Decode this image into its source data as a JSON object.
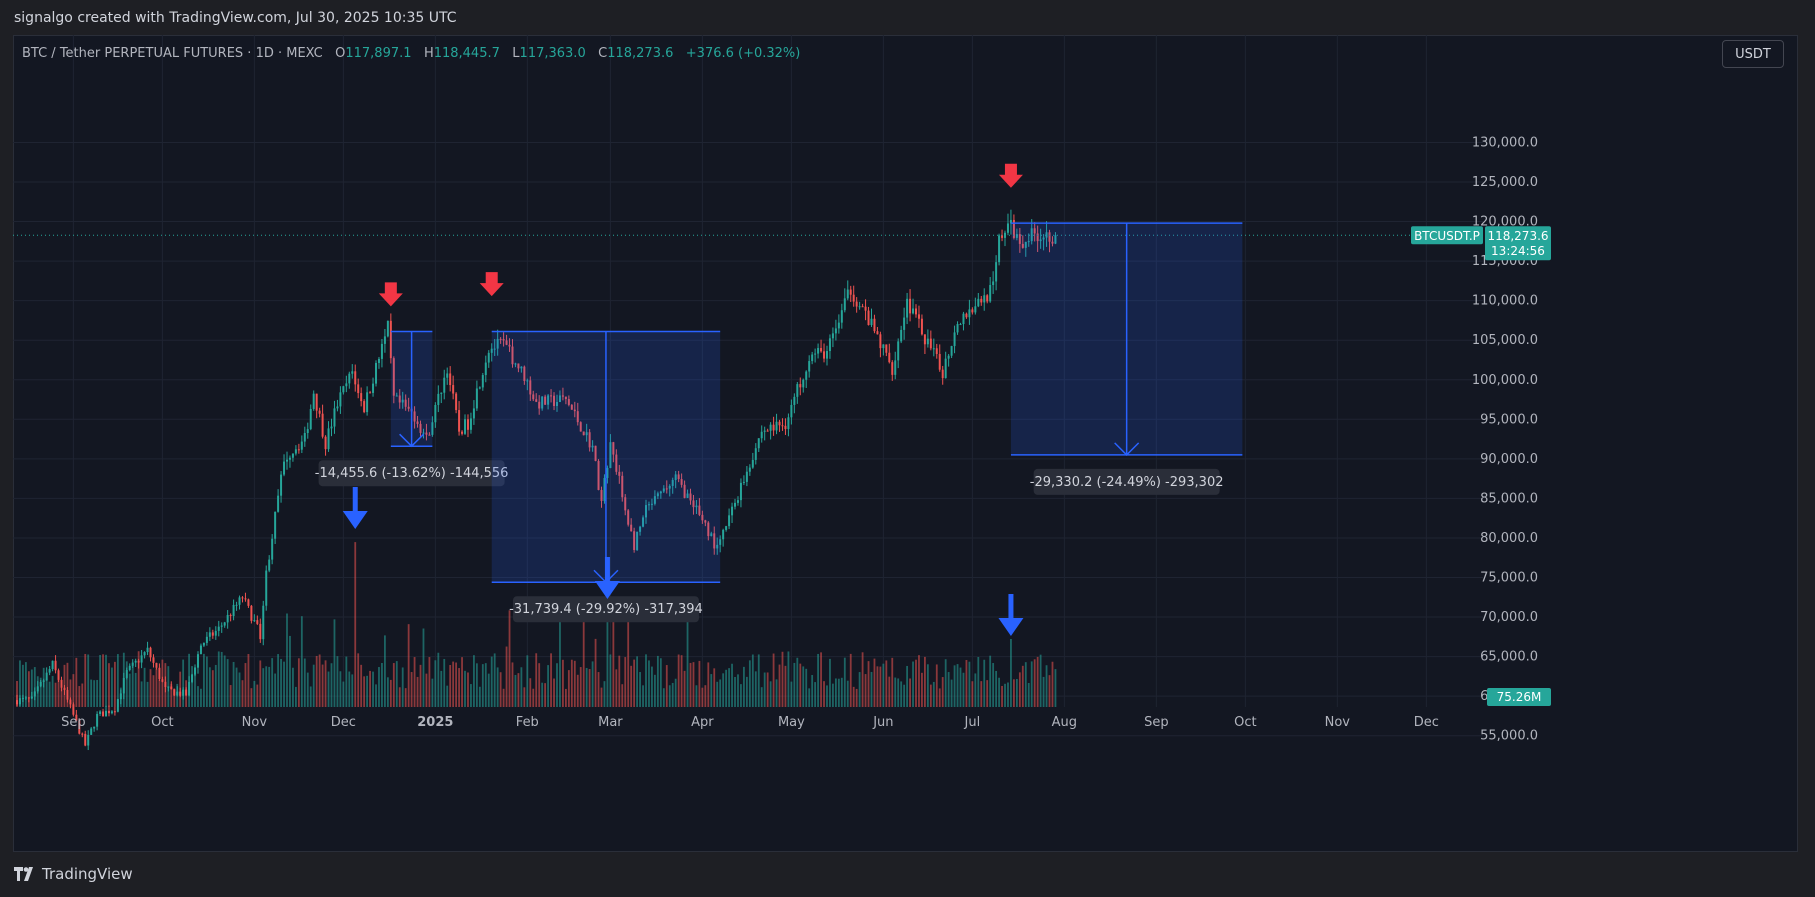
{
  "attribution": "signalgo created with TradingView.com, Jul 30, 2025 10:35 UTC",
  "header": {
    "symbol": "BTC / Tether PERPETUAL FUTURES · 1D · MEXC",
    "open_label": "O",
    "open": "117,897.1",
    "high_label": "H",
    "high": "118,445.7",
    "low_label": "L",
    "low": "117,363.0",
    "close_label": "C",
    "close": "118,273.6",
    "change": "+376.6 (+0.32%)"
  },
  "currency_button": "USDT",
  "footer": {
    "brand": "TradingView"
  },
  "colors": {
    "up": "#26a69a",
    "down": "#ef5350",
    "measure": "#2962ff",
    "marker_red": "#f23645",
    "marker_blue": "#2962ff",
    "background": "#131722"
  },
  "price_label": {
    "symbol": "BTCUSDT.P",
    "price": "118,273.6",
    "countdown": "13:24:56"
  },
  "volume_label": "75.26M",
  "measurements": [
    {
      "text": "-14,455.6 (-13.62%) -144,556",
      "from_date": "2024-12-17",
      "to_date": "2024-12-31",
      "top": 106100,
      "bottom": 91600
    },
    {
      "text": "-31,739.4 (-29.92%) -317,394",
      "from_date": "2025-01-20",
      "to_date": "2025-04-07",
      "top": 106100,
      "bottom": 74400
    },
    {
      "text": "-29,330.2 (-24.49%) -293,302",
      "from_date": "2025-07-14",
      "to_date": "2025-09-30",
      "top": 119800,
      "bottom": 90500
    }
  ],
  "chart_data": {
    "type": "candlestick",
    "title": "BTC / Tether PERPETUAL FUTURES · 1D · MEXC",
    "y_ticks": [
      "55,000.0",
      "60,000.0",
      "65,000.0",
      "70,000.0",
      "75,000.0",
      "80,000.0",
      "85,000.0",
      "90,000.0",
      "95,000.0",
      "100,000.0",
      "105,000.0",
      "110,000.0",
      "115,000.0",
      "120,000.0",
      "125,000.0",
      "130,000.0"
    ],
    "x_ticks": [
      "Sep",
      "Oct",
      "Nov",
      "Dec",
      "2025",
      "Feb",
      "Mar",
      "Apr",
      "May",
      "Jun",
      "Jul",
      "Aug",
      "Sep",
      "Oct",
      "Nov",
      "Dec"
    ],
    "ylim": [
      52000,
      130000
    ],
    "last_price": 118273.6,
    "price_points": [
      [
        "2024-08-19",
        59500
      ],
      [
        "2024-08-26",
        64000
      ],
      [
        "2024-09-01",
        58500
      ],
      [
        "2024-09-06",
        53800
      ],
      [
        "2024-09-10",
        57500
      ],
      [
        "2024-09-16",
        58500
      ],
      [
        "2024-09-20",
        63000
      ],
      [
        "2024-09-27",
        65800
      ],
      [
        "2024-10-03",
        60800
      ],
      [
        "2024-10-10",
        60200
      ],
      [
        "2024-10-15",
        66500
      ],
      [
        "2024-10-21",
        68500
      ],
      [
        "2024-10-29",
        72500
      ],
      [
        "2024-11-04",
        67800
      ],
      [
        "2024-11-06",
        75500
      ],
      [
        "2024-11-11",
        87500
      ],
      [
        "2024-11-13",
        90500
      ],
      [
        "2024-11-19",
        92500
      ],
      [
        "2024-11-22",
        98500
      ],
      [
        "2024-11-26",
        92000
      ],
      [
        "2024-11-30",
        97000
      ],
      [
        "2024-12-05",
        101000
      ],
      [
        "2024-12-09",
        96500
      ],
      [
        "2024-12-17",
        106500
      ],
      [
        "2024-12-19",
        97500
      ],
      [
        "2024-12-26",
        95500
      ],
      [
        "2024-12-30",
        92500
      ],
      [
        "2025-01-06",
        101500
      ],
      [
        "2025-01-10",
        93500
      ],
      [
        "2025-01-13",
        94500
      ],
      [
        "2025-01-20",
        104000
      ],
      [
        "2025-01-25",
        104500
      ],
      [
        "2025-02-01",
        100500
      ],
      [
        "2025-02-05",
        97000
      ],
      [
        "2025-02-15",
        97500
      ],
      [
        "2025-02-24",
        91500
      ],
      [
        "2025-02-27",
        84500
      ],
      [
        "2025-03-02",
        92000
      ],
      [
        "2025-03-10",
        79000
      ],
      [
        "2025-03-14",
        83500
      ],
      [
        "2025-03-24",
        87500
      ],
      [
        "2025-04-02",
        82500
      ],
      [
        "2025-04-07",
        78500
      ],
      [
        "2025-04-13",
        84500
      ],
      [
        "2025-04-22",
        93500
      ],
      [
        "2025-04-30",
        94500
      ],
      [
        "2025-05-08",
        103000
      ],
      [
        "2025-05-14",
        103500
      ],
      [
        "2025-05-22",
        111500
      ],
      [
        "2025-05-28",
        107500
      ],
      [
        "2025-06-05",
        101500
      ],
      [
        "2025-06-10",
        110000
      ],
      [
        "2025-06-17",
        104500
      ],
      [
        "2025-06-22",
        101000
      ],
      [
        "2025-06-27",
        107500
      ],
      [
        "2025-07-03",
        109500
      ],
      [
        "2025-07-09",
        111500
      ],
      [
        "2025-07-11",
        117500
      ],
      [
        "2025-07-14",
        119800
      ],
      [
        "2025-07-18",
        117500
      ],
      [
        "2025-07-23",
        118500
      ],
      [
        "2025-07-29",
        118273.6
      ]
    ]
  }
}
